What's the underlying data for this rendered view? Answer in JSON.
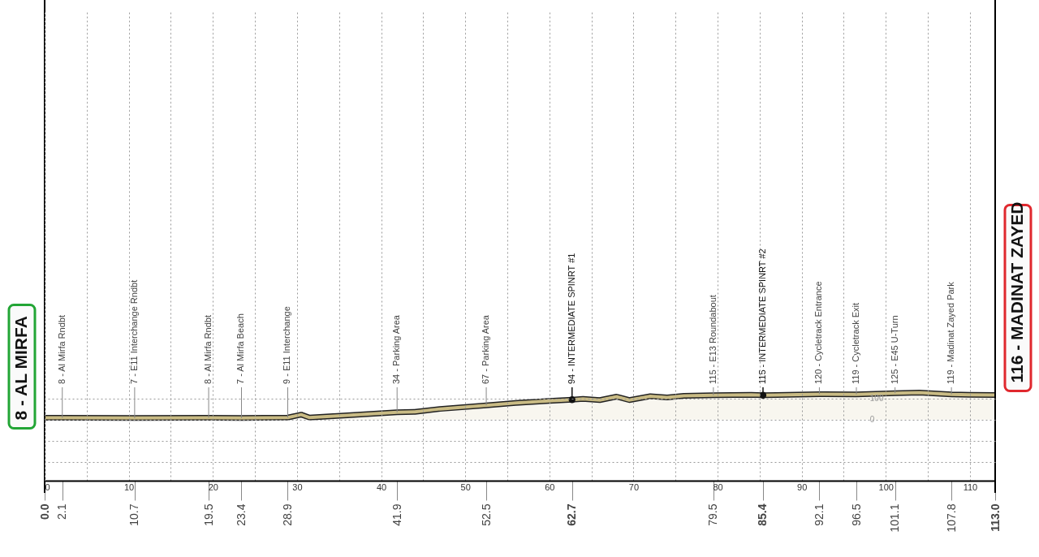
{
  "chart_data": {
    "type": "area",
    "x": [
      0,
      2.1,
      10.7,
      19.5,
      23.4,
      28.9,
      30.5,
      31.5,
      36,
      41.9,
      44,
      47,
      52.5,
      56,
      60,
      62.7,
      64,
      66,
      68,
      69.5,
      72,
      74,
      76,
      79.5,
      84,
      85.4,
      87,
      92.1,
      96.5,
      101.1,
      104,
      107.8,
      110,
      113
    ],
    "series": [
      {
        "color": "#c9bb84",
        "values": [
          8,
          8,
          7,
          8,
          7,
          9,
          23,
          9,
          20,
          34,
          36,
          50,
          67,
          78,
          88,
          94,
          98,
          92,
          108,
          92,
          110,
          104,
          112,
          115,
          117,
          115,
          116,
          120,
          119,
          125,
          127,
          119,
          117,
          116
        ]
      }
    ],
    "xlim": [
      0,
      113
    ],
    "xticks": [
      0,
      {
        "value": 5,
        "label": null
      },
      10,
      {
        "value": 15,
        "label": null
      },
      20,
      {
        "value": 25,
        "label": null
      },
      30,
      {
        "value": 35,
        "label": null
      },
      40,
      {
        "value": 45,
        "label": null
      },
      50,
      {
        "value": 55,
        "label": null
      },
      60,
      {
        "value": 65,
        "label": null
      },
      70,
      {
        "value": 75,
        "label": null
      },
      80,
      {
        "value": 85,
        "label": null
      },
      90,
      {
        "value": 95,
        "label": null
      },
      100,
      {
        "value": 105,
        "label": null
      },
      110
    ],
    "x2lim": [
      0,
      113
    ],
    "x2ticks": [
      {
        "value": 0,
        "label": "0.0"
      },
      2.1,
      10.7,
      19.5,
      23.4,
      28.9,
      41.9,
      52.5,
      62.7,
      79.5,
      85.4,
      92.1,
      96.5,
      101.1,
      107.8,
      {
        "value": 113,
        "label": "113.0"
      }
    ],
    "ylim": [
      -290,
      1930
    ],
    "yticks": [
      {
        "value": -200,
        "label": null
      },
      {
        "value": -100,
        "label": null
      },
      0,
      100
    ],
    "grid": true,
    "ref_lines": [
      {
        "axis": "x",
        "value": 62.7,
        "label": "94 - INTERMEDIATE SPINRT #1"
      },
      {
        "axis": "x",
        "value": 85.4,
        "label": "115 - INTERMEDIATE SPINRT #2"
      }
    ],
    "annotations": [
      {
        "text": "8 - AL MIRFA",
        "x": 0,
        "y": 8
      },
      {
        "text": "8 - Al Mirfa Rndbt",
        "x": 2.1,
        "y": 8
      },
      {
        "text": "7 - E11 Interchange Rndbt",
        "x": 10.7,
        "y": 7
      },
      {
        "text": "8 - Al Mirfa Rndbt",
        "x": 19.5,
        "y": 8
      },
      {
        "text": "7 - Al Mirfa Beach",
        "x": 23.4,
        "y": 7
      },
      {
        "text": "9 - E11 Interchange",
        "x": 28.9,
        "y": 9
      },
      {
        "text": "34 - Parking Area",
        "x": 41.9,
        "y": 34
      },
      {
        "text": "67 - Parking Area",
        "x": 52.5,
        "y": 67
      },
      {
        "text": "115 - E13 Roundabout",
        "x": 79.5,
        "y": 115
      },
      {
        "text": "120 - Cycletrack Entrance",
        "x": 92.1,
        "y": 120
      },
      {
        "text": "119 - Cycletrack Exit",
        "x": 96.5,
        "y": 119
      },
      {
        "text": "125 - E45 U-Turn",
        "x": 101.1,
        "y": 125
      },
      {
        "text": "119 - Madinat Zayed Park",
        "x": 107.8,
        "y": 119
      },
      {
        "text": "116 - MADINAT ZAYED",
        "x": 113,
        "y": 116
      }
    ]
  }
}
